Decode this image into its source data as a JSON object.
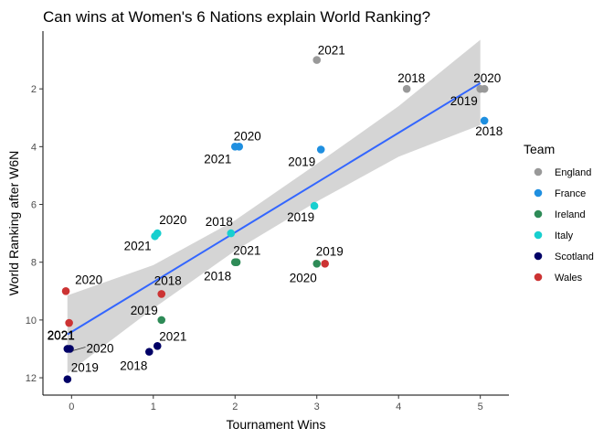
{
  "chart_data": {
    "type": "scatter",
    "title": "Can wins at Women's 6 Nations explain World Ranking?",
    "xlabel": "Tournament Wins",
    "ylabel": "World Ranking after W6N",
    "xlim": [
      -0.35,
      5.35
    ],
    "ylim": [
      0,
      12.6
    ],
    "y_reversed": true,
    "x_ticks": [
      0,
      1,
      2,
      3,
      4,
      5
    ],
    "y_ticks": [
      2,
      4,
      6,
      8,
      10,
      12
    ],
    "grid": false,
    "legend_position": "right",
    "legend_title": "Team",
    "series": [
      {
        "name": "England",
        "color": "#999999",
        "points": [
          {
            "x": 3,
            "y": 1,
            "label": "2021"
          },
          {
            "x": 4.1,
            "y": 2,
            "label": "2018"
          },
          {
            "x": 5.05,
            "y": 2,
            "label": "2020"
          },
          {
            "x": 5.0,
            "y": 2,
            "label": "2019"
          }
        ]
      },
      {
        "name": "France",
        "color": "#1f8fe0",
        "points": [
          {
            "x": 2.05,
            "y": 4,
            "label": "2020"
          },
          {
            "x": 2.0,
            "y": 4,
            "label": "2021"
          },
          {
            "x": 3.05,
            "y": 4.1,
            "label": "2019"
          },
          {
            "x": 5.05,
            "y": 3.1,
            "label": "2018"
          }
        ]
      },
      {
        "name": "Ireland",
        "color": "#2e8b57",
        "points": [
          {
            "x": 2.0,
            "y": 8,
            "label": "2021"
          },
          {
            "x": 2.02,
            "y": 8,
            "label": "2018"
          },
          {
            "x": 3.0,
            "y": 8.05,
            "label": "2020"
          },
          {
            "x": 1.1,
            "y": 10,
            "label": "2019"
          }
        ]
      },
      {
        "name": "Italy",
        "color": "#17cfcf",
        "points": [
          {
            "x": 1.05,
            "y": 7,
            "label": "2020"
          },
          {
            "x": 1.02,
            "y": 7.1,
            "label": "2021"
          },
          {
            "x": 1.95,
            "y": 7,
            "label": "2018"
          },
          {
            "x": 2.97,
            "y": 6.05,
            "label": "2019"
          }
        ]
      },
      {
        "name": "Scotland",
        "color": "#000066",
        "points": [
          {
            "x": -0.05,
            "y": 11,
            "label": "2021"
          },
          {
            "x": -0.02,
            "y": 11,
            "label": "2020"
          },
          {
            "x": -0.05,
            "y": 12.05,
            "label": "2019"
          },
          {
            "x": 0.95,
            "y": 11.1,
            "label": "2018"
          },
          {
            "x": 1.05,
            "y": 10.9,
            "label": "2021"
          }
        ]
      },
      {
        "name": "Wales",
        "color": "#cc3333",
        "points": [
          {
            "x": -0.07,
            "y": 9,
            "label": "2020"
          },
          {
            "x": -0.03,
            "y": 10.1,
            "label": "2021"
          },
          {
            "x": 1.1,
            "y": 9.1,
            "label": "2018"
          },
          {
            "x": 3.1,
            "y": 8.05,
            "label": "2019"
          }
        ]
      }
    ],
    "regression": {
      "color": "#3366ff",
      "band_color": "#d3d3d3",
      "line": [
        {
          "x": -0.05,
          "y": 10.5
        },
        {
          "x": 5.0,
          "y": 1.8
        }
      ],
      "band": [
        {
          "x": -0.05,
          "lower": 9.15,
          "upper": 11.85
        },
        {
          "x": 1.0,
          "lower": 8.1,
          "upper": 9.6
        },
        {
          "x": 2.0,
          "lower": 6.55,
          "upper": 7.6
        },
        {
          "x": 3.0,
          "lower": 4.6,
          "upper": 5.9
        },
        {
          "x": 4.0,
          "lower": 2.6,
          "upper": 4.35
        },
        {
          "x": 5.0,
          "lower": 0.3,
          "upper": 3.25
        }
      ]
    }
  }
}
